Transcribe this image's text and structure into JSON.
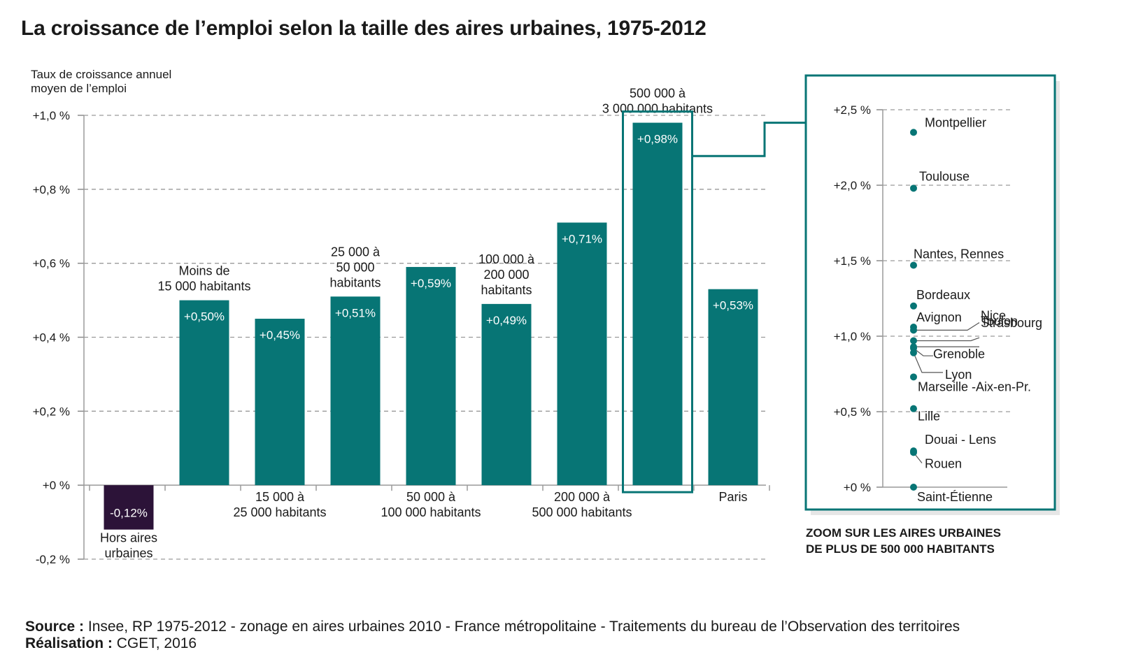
{
  "chart_data": [
    {
      "type": "bar",
      "title": "La croissance de l’emploi selon la taille des aires urbaines, 1975-2012",
      "ylabel": [
        "Taux de croissance annuel",
        "moyen de l’emploi"
      ],
      "ylim": [
        -0.2,
        1.0
      ],
      "yticks": [
        {
          "v": 1.0,
          "label": "+1,0 %"
        },
        {
          "v": 0.8,
          "label": "+0,8 %"
        },
        {
          "v": 0.6,
          "label": "+0,6 %"
        },
        {
          "v": 0.4,
          "label": "+0,4 %"
        },
        {
          "v": 0.2,
          "label": "+0,2 %"
        },
        {
          "v": 0.0,
          "label": "+0 %"
        },
        {
          "v": -0.2,
          "label": "-0,2 %"
        }
      ],
      "grid": true,
      "categories": [
        [
          "Hors aires",
          "urbaines"
        ],
        [
          "Moins de",
          "15 000 habitants"
        ],
        [
          "15 000 à",
          "25 000 habitants"
        ],
        [
          "25 000 à",
          "50 000",
          "habitants"
        ],
        [
          "50 000 à",
          "100 000 habitants"
        ],
        [
          "100 000 à",
          "200 000",
          "habitants"
        ],
        [
          "200 000 à",
          "500 000 habitants"
        ],
        [
          "500 000 à",
          "3 000 000 habitants"
        ],
        [
          "Paris"
        ]
      ],
      "values": [
        -0.12,
        0.5,
        0.45,
        0.51,
        0.59,
        0.49,
        0.71,
        0.98,
        0.53
      ],
      "value_labels": [
        "-0,12%",
        "+0,50%",
        "+0,45%",
        "+0,51%",
        "+0,59%",
        "+0,49%",
        "+0,71%",
        "+0,98%",
        "+0,53%"
      ],
      "label_position": [
        "below",
        "above",
        "below",
        "above",
        "below",
        "above",
        "below",
        "above",
        "below"
      ],
      "highlighted_index": 7,
      "colors": {
        "positive": "#077575",
        "negative": "#2c1338"
      }
    },
    {
      "type": "scatter",
      "title": [
        "ZOOM SUR LES AIRES URBAINES",
        "DE PLUS DE 500 000 HABITANTS"
      ],
      "ylim": [
        0,
        2.5
      ],
      "yticks": [
        {
          "v": 2.5,
          "label": "+2,5 %"
        },
        {
          "v": 2.0,
          "label": "+2,0 %"
        },
        {
          "v": 1.5,
          "label": "+1,5 %"
        },
        {
          "v": 1.0,
          "label": "+1,0 %"
        },
        {
          "v": 0.5,
          "label": "+0,5 %"
        },
        {
          "v": 0.0,
          "label": "+0 %"
        }
      ],
      "grid": true,
      "points": [
        {
          "name": "Montpellier",
          "y": 2.35
        },
        {
          "name": "Toulouse",
          "y": 1.98
        },
        {
          "name": "Nantes, Rennes",
          "y": 1.47
        },
        {
          "name": "Bordeaux",
          "y": 1.2
        },
        {
          "name": "Avignon",
          "y": 1.06
        },
        {
          "name": "Nice",
          "y": 1.04
        },
        {
          "name": "Toulon",
          "y": 0.97
        },
        {
          "name": "Strasbourg",
          "y": 0.93
        },
        {
          "name": "Grenoble",
          "y": 0.92
        },
        {
          "name": "Lyon",
          "y": 0.89
        },
        {
          "name": "Marseille -Aix-en-Pr.",
          "y": 0.73
        },
        {
          "name": "Lille",
          "y": 0.52
        },
        {
          "name": "Douai - Lens",
          "y": 0.24
        },
        {
          "name": "Rouen",
          "y": 0.23
        },
        {
          "name": "Saint-Étienne",
          "y": 0.0
        }
      ],
      "color": "#077575"
    }
  ],
  "footer": {
    "source_label": "Source :",
    "source_text": " Insee, RP 1975-2012 - zonage en aires urbaines 2010 - France métropolitaine - Traitements du bureau de l’Observation des territoires",
    "realisation_label": "Réalisation :",
    "realisation_text": " CGET, 2016"
  }
}
